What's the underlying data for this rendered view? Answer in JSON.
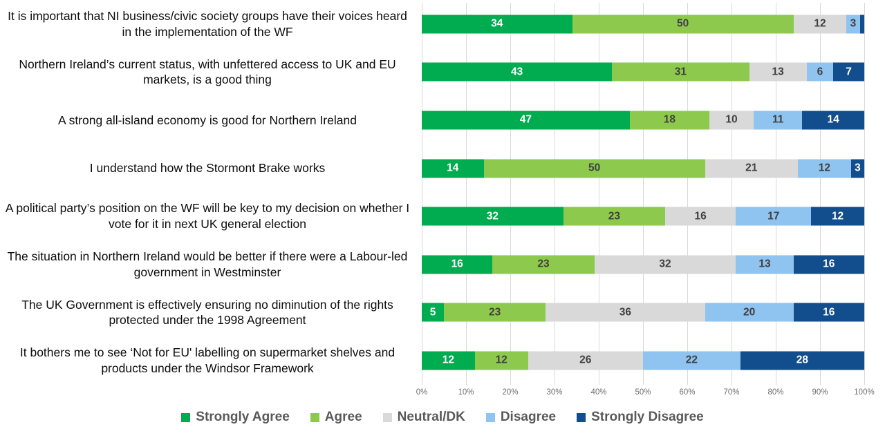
{
  "chart_data": {
    "type": "bar",
    "orientation": "horizontal",
    "stacked": true,
    "stacked_total": 100,
    "title": "",
    "xlabel": "",
    "ylabel": "",
    "grid": true,
    "legend_position": "bottom",
    "data_label_min_display": 2,
    "categories": [
      "It is important that NI business/civic society groups have their voices heard in the implementation of the WF",
      "Northern Ireland’s current status, with unfettered access to UK and EU markets, is a good thing",
      "A strong all-island economy is good for Northern Ireland",
      "I understand how the Stormont Brake works",
      "A political party’s position on the WF will be key to my decision on whether I vote for it in next UK general election",
      "The situation in Northern Ireland would be better if there were a Labour-led government in Westminster",
      "The UK Government is effectively ensuring no diminution of the rights protected under the 1998 Agreement",
      "It bothers me to see ‘Not for EU' labelling on supermarket shelves and products under the Windsor Framework"
    ],
    "series": [
      {
        "name": "Strongly Agree",
        "color": "#00AC4F",
        "label_color": "#ffffff",
        "values": [
          34,
          43,
          47,
          14,
          32,
          16,
          5,
          12
        ]
      },
      {
        "name": "Agree",
        "color": "#8DC94D",
        "label_color": "#404040",
        "values": [
          50,
          31,
          18,
          50,
          23,
          23,
          23,
          12
        ]
      },
      {
        "name": "Neutral/DK",
        "color": "#D9D9D9",
        "label_color": "#404040",
        "values": [
          12,
          13,
          10,
          21,
          16,
          32,
          36,
          26
        ]
      },
      {
        "name": "Disagree",
        "color": "#8FC3F0",
        "label_color": "#404040",
        "values": [
          3,
          6,
          11,
          12,
          17,
          13,
          20,
          22
        ]
      },
      {
        "name": "Strongly Disagree",
        "color": "#124E8E",
        "label_color": "#ffffff",
        "values": [
          1,
          7,
          14,
          3,
          12,
          16,
          16,
          28
        ]
      }
    ],
    "x_axis": {
      "min": 0,
      "max": 100,
      "ticks": [
        "0%",
        "10%",
        "20%",
        "30%",
        "40%",
        "50%",
        "60%",
        "70%",
        "80%",
        "90%",
        "100%"
      ]
    }
  }
}
